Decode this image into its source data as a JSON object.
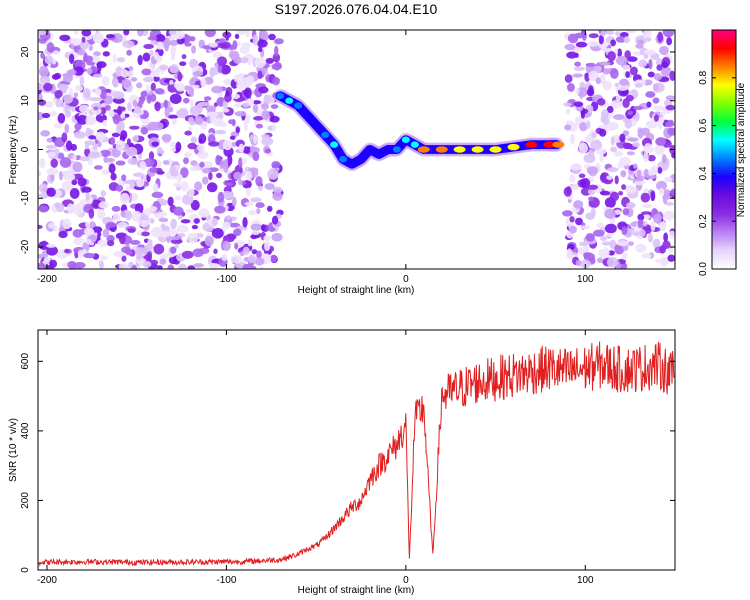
{
  "chart_data": [
    {
      "type": "heatmap",
      "title": "S197.2026.076.04.04.E10",
      "xlabel": "Height of straight line (km)",
      "ylabel": "Frequency (Hz)",
      "xlim": [
        -205,
        150
      ],
      "ylim": [
        -24.5,
        24.5
      ],
      "xticks": [
        -200,
        -100,
        0,
        100
      ],
      "yticks": [
        -20,
        -10,
        0,
        10,
        20
      ],
      "colorbar": {
        "label": "Normalized spectral amplitude",
        "range": [
          0.0,
          1.0
        ],
        "ticks": [
          0.0,
          0.2,
          0.4,
          0.6,
          0.8
        ],
        "tick_labels": [
          "0.0",
          "0.2",
          "0.4",
          "0.6",
          "0.8"
        ],
        "colors": [
          "#ffffff",
          "#e8d4fb",
          "#b880f5",
          "#8a2be2",
          "#6a0dde",
          "#1a00ff",
          "#0080ff",
          "#00ffff",
          "#00ff40",
          "#80ff00",
          "#ffff00",
          "#ff8000",
          "#ff0000",
          "#ff0080"
        ]
      },
      "ridge": {
        "x": [
          -70,
          -65,
          -60,
          -55,
          -50,
          -45,
          -40,
          -35,
          -30,
          -25,
          -20,
          -15,
          -10,
          -5,
          0,
          5,
          10,
          20,
          30,
          40,
          50,
          60,
          70,
          80,
          85
        ],
        "y": [
          11,
          10,
          9,
          7,
          5,
          3,
          1,
          -2,
          -3,
          -2,
          0,
          -1,
          0,
          0,
          2,
          1,
          0,
          0,
          0,
          0,
          0,
          0.5,
          1,
          1,
          1
        ],
        "amplitude": [
          0.45,
          0.5,
          0.45,
          0.4,
          0.4,
          0.45,
          0.5,
          0.45,
          0.4,
          0.42,
          0.4,
          0.4,
          0.42,
          0.45,
          0.5,
          0.55,
          0.85,
          0.85,
          0.75,
          0.8,
          0.8,
          0.8,
          0.9,
          0.9,
          0.85
        ]
      },
      "noise_regions": [
        [
          -205,
          -70
        ],
        [
          90,
          150
        ]
      ]
    },
    {
      "type": "line",
      "title": "",
      "xlabel": "Height of straight line (km)",
      "ylabel": "SNR (10 * v/v)",
      "xlim": [
        -205,
        150
      ],
      "ylim": [
        0,
        690
      ],
      "xticks": [
        -200,
        -100,
        0,
        100
      ],
      "yticks": [
        0,
        200,
        400,
        600
      ],
      "series": [
        {
          "name": "SNR",
          "color": "#e02020",
          "x": [
            -205,
            -180,
            -150,
            -120,
            -90,
            -70,
            -60,
            -55,
            -50,
            -45,
            -40,
            -35,
            -30,
            -25,
            -20,
            -15,
            -10,
            -5,
            0,
            2,
            5,
            10,
            15,
            20,
            30,
            40,
            50,
            60,
            70,
            80,
            90,
            100,
            110,
            120,
            130,
            140,
            150
          ],
          "y": [
            22,
            24,
            22,
            23,
            24,
            30,
            45,
            60,
            70,
            90,
            120,
            150,
            180,
            200,
            260,
            300,
            330,
            360,
            420,
            30,
            430,
            470,
            40,
            500,
            520,
            540,
            550,
            560,
            570,
            580,
            570,
            580,
            590,
            575,
            580,
            590,
            560
          ]
        }
      ]
    }
  ]
}
